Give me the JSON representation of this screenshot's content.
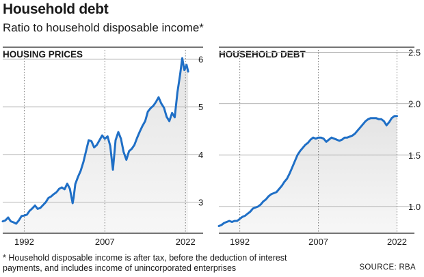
{
  "header": {
    "title": "Household debt",
    "subtitle": "Ratio to household disposable income*"
  },
  "footnote": "* Household disposable income is after tax, before the deduction of interest payments, and includes income of unincorporated enterprises",
  "source": "SOURCE: RBA",
  "colors": {
    "line": "#1f6fc6",
    "fill": "#e4e4e4",
    "grid": "#b3b3b3",
    "axis": "#222222"
  },
  "chart_data": [
    {
      "type": "area",
      "title": "HOUSING PRICES",
      "xlabel": "",
      "ylabel": "",
      "xlim": [
        1988,
        2023.5
      ],
      "ylim": [
        2.35,
        6.25
      ],
      "x_ticks": [
        1992,
        2007,
        2022
      ],
      "y_ticks": [
        3,
        4,
        5,
        6
      ],
      "grid": true,
      "series": [
        {
          "x": [
            1988.0,
            1988.5,
            1989.0,
            1989.5,
            1990.0,
            1990.5,
            1991.0,
            1991.5,
            1992.0,
            1992.5,
            1993.0,
            1993.5,
            1994.0,
            1994.5,
            1995.0,
            1995.5,
            1996.0,
            1996.5,
            1997.0,
            1997.5,
            1998.0,
            1998.5,
            1999.0,
            1999.5,
            2000.0,
            2000.5,
            2001.0,
            2001.2,
            2001.5,
            2002.0,
            2002.5,
            2003.0,
            2003.5,
            2004.0,
            2004.5,
            2005.0,
            2005.5,
            2006.0,
            2006.5,
            2007.0,
            2007.5,
            2008.0,
            2008.5,
            2009.0,
            2009.5,
            2010.0,
            2010.5,
            2011.0,
            2011.5,
            2012.0,
            2012.5,
            2013.0,
            2013.5,
            2014.0,
            2014.5,
            2015.0,
            2015.5,
            2016.0,
            2016.5,
            2017.0,
            2017.5,
            2018.0,
            2018.5,
            2019.0,
            2019.5,
            2020.0,
            2020.5,
            2021.0,
            2021.4,
            2021.8,
            2022.2,
            2022.5
          ],
          "values": [
            2.6,
            2.62,
            2.68,
            2.6,
            2.58,
            2.55,
            2.62,
            2.71,
            2.72,
            2.74,
            2.82,
            2.87,
            2.93,
            2.86,
            2.88,
            2.94,
            3.0,
            3.09,
            3.12,
            3.17,
            3.21,
            3.28,
            3.31,
            3.27,
            3.39,
            3.28,
            2.98,
            3.1,
            3.38,
            3.53,
            3.66,
            3.84,
            4.07,
            4.3,
            4.28,
            4.15,
            4.2,
            4.3,
            4.4,
            4.33,
            4.38,
            4.18,
            3.68,
            4.3,
            4.47,
            4.33,
            4.05,
            3.89,
            4.07,
            4.12,
            4.2,
            4.35,
            4.48,
            4.6,
            4.7,
            4.9,
            4.97,
            5.02,
            5.1,
            5.2,
            5.07,
            4.98,
            4.79,
            4.7,
            4.87,
            4.78,
            5.3,
            5.68,
            6.02,
            5.77,
            5.88,
            5.74
          ]
        }
      ]
    },
    {
      "type": "area",
      "title": "HOUSEHOLD DEBT",
      "xlabel": "",
      "ylabel": "",
      "xlim": [
        1988,
        2023.5
      ],
      "ylim": [
        0.74,
        2.55
      ],
      "x_ticks": [
        1992,
        2007,
        2022
      ],
      "y_ticks": [
        1.0,
        1.5,
        2.0,
        2.5
      ],
      "y_tick_labels": [
        "1.0",
        "1.5",
        "2.0",
        "2.5"
      ],
      "grid": true,
      "series": [
        {
          "x": [
            1988.0,
            1988.5,
            1989.0,
            1989.5,
            1990.0,
            1990.5,
            1991.0,
            1991.5,
            1992.0,
            1992.5,
            1993.0,
            1993.5,
            1994.0,
            1994.5,
            1995.0,
            1995.5,
            1996.0,
            1996.5,
            1997.0,
            1997.5,
            1998.0,
            1998.5,
            1999.0,
            1999.5,
            2000.0,
            2000.5,
            2001.0,
            2001.5,
            2002.0,
            2002.5,
            2003.0,
            2003.5,
            2004.0,
            2004.5,
            2005.0,
            2005.5,
            2006.0,
            2006.5,
            2007.0,
            2007.5,
            2008.0,
            2008.5,
            2009.0,
            2009.5,
            2010.0,
            2010.5,
            2011.0,
            2011.5,
            2012.0,
            2012.5,
            2013.0,
            2013.5,
            2014.0,
            2014.5,
            2015.0,
            2015.5,
            2016.0,
            2016.5,
            2017.0,
            2017.5,
            2018.0,
            2018.5,
            2019.0,
            2019.5,
            2020.0,
            2020.5,
            2021.0,
            2021.5,
            2022.0
          ],
          "values": [
            0.81,
            0.82,
            0.84,
            0.85,
            0.86,
            0.85,
            0.86,
            0.86,
            0.88,
            0.9,
            0.91,
            0.93,
            0.95,
            0.98,
            0.99,
            1.0,
            1.02,
            1.05,
            1.07,
            1.1,
            1.12,
            1.13,
            1.14,
            1.17,
            1.2,
            1.24,
            1.27,
            1.32,
            1.38,
            1.44,
            1.5,
            1.54,
            1.57,
            1.6,
            1.62,
            1.65,
            1.67,
            1.66,
            1.67,
            1.67,
            1.66,
            1.63,
            1.65,
            1.67,
            1.66,
            1.65,
            1.64,
            1.65,
            1.67,
            1.67,
            1.68,
            1.69,
            1.71,
            1.74,
            1.77,
            1.8,
            1.83,
            1.85,
            1.86,
            1.86,
            1.86,
            1.85,
            1.85,
            1.83,
            1.79,
            1.82,
            1.86,
            1.88,
            1.88
          ]
        }
      ]
    }
  ]
}
